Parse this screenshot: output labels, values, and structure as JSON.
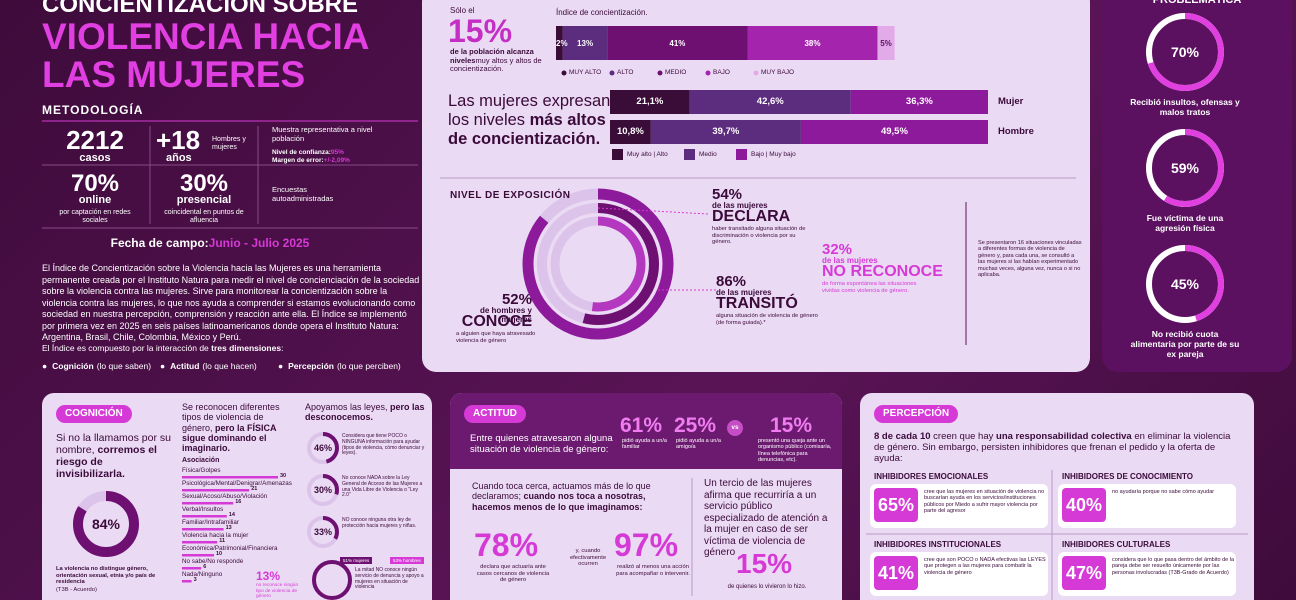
{
  "header": {
    "title_top": "CONCIENTIZACIÓN SOBRE",
    "title": "VIOLENCIA HACIA LAS MUJERES"
  },
  "methodology": {
    "heading": "METODOLOGÍA",
    "cases": {
      "value": "2212",
      "label": "casos"
    },
    "age": {
      "value": "+18",
      "label": "años",
      "note": "Hombres y mujeres"
    },
    "sample": "Muestra representativa a nivel población",
    "confidence_label": "Nivel de confianza:",
    "confidence": "95%",
    "margin_label": "Margen de error:",
    "margin": "+/-2,09%",
    "online": {
      "value": "70%",
      "label": "online",
      "note": "por captación en redes sociales"
    },
    "presencial": {
      "value": "30%",
      "label": "presencial",
      "note": "coincidental en puntos de afluencia"
    },
    "surveys": "Encuestas autoadministradas",
    "field_label": "Fecha de campo:",
    "field": "Junio - Julio 2025"
  },
  "intro": {
    "paragraph": "El Índice de Concientización sobre la Violencia hacia las Mujeres es una herramienta permanente creada por el Instituto Natura para medir el nivel de concienciación de la sociedad sobre la violencia contra las mujeres. Sirve para monitorear la concientización sobre la violencia contra las mujeres, lo que nos ayuda a comprender si estamos evolucionando como sociedad en nuestra percepción, comprensión y reacción ante ella. El Índice se implementó por primera vez en 2025 en seis países latinoamericanos donde opera el Instituto Natura: Argentina, Brasil, Chile, Colombia, México y Perú.",
    "dimensions_prefix": "El Índice es compuesto por la interacción de ",
    "dimensions_bold": "tres dimensiones",
    "dimensions_suffix": ":",
    "dims": [
      {
        "name": "Cognición",
        "note": "(lo que saben)"
      },
      {
        "name": "Actitud",
        "note": "(lo que hacen)"
      },
      {
        "name": "Percepción",
        "note": "(lo que perciben)"
      }
    ]
  },
  "index": {
    "lead": "Sólo el",
    "big": "15%",
    "text_bold": "de la población alcanza niveles",
    "text": "muy altos y altos de concientización.",
    "title": "Índice de concientización.",
    "segments": [
      {
        "name": "MUY ALTO",
        "value": 2,
        "label": "2%",
        "color": "#3a0c38"
      },
      {
        "name": "ALTO",
        "value": 13,
        "label": "13%",
        "color": "#5c2c7e"
      },
      {
        "name": "MEDIO",
        "value": 41,
        "label": "41%",
        "color": "#6e0f72"
      },
      {
        "name": "BAJO",
        "value": 38,
        "label": "38%",
        "color": "#a424ae"
      },
      {
        "name": "MUY BAJO",
        "value": 5,
        "label": "5%",
        "color": "#e3aaea"
      }
    ]
  },
  "gender": {
    "headline": "Las mujeres expresan los niveles ",
    "headline_bold": "más altos de concientización.",
    "rows": [
      {
        "name": "Mujer",
        "segments": [
          {
            "value": 21.1,
            "label": "21,1%"
          },
          {
            "value": 42.6,
            "label": "42,6%"
          },
          {
            "value": 36.3,
            "label": "36,3%"
          }
        ]
      },
      {
        "name": "Hombre",
        "segments": [
          {
            "value": 10.8,
            "label": "10,8%"
          },
          {
            "value": 39.7,
            "label": "39,7%"
          },
          {
            "value": 49.5,
            "label": "49,5%"
          }
        ]
      }
    ],
    "legend": [
      {
        "name": "Muy alto | Alto",
        "color": "#3a0c38"
      },
      {
        "name": "Medio",
        "color": "#5c2c7e"
      },
      {
        "name": "Bajo | Muy bajo",
        "color": "#8c1a9a"
      }
    ]
  },
  "exposure": {
    "title": "NIVEL DE EXPOSICIÓN",
    "stats": [
      {
        "value": 54,
        "label": "54%",
        "sub": "de las mujeres",
        "verb": "DECLARA",
        "note": "haber transitado alguna situación de discriminación o violencia por su género.",
        "color": "#6e0f72"
      },
      {
        "value": 32,
        "label": "32%",
        "sub": "de las mujeres",
        "verb": "NO RECONOCE",
        "note": "de forma espontánea las situaciones vividas como violencia de género.",
        "color": "#d63ad6"
      },
      {
        "value": 86,
        "label": "86%",
        "sub": "de las mujeres",
        "verb": "TRANSITÓ",
        "note": "alguna situación de violencia de género (de forma guiada).*",
        "color": "#8c1a9a"
      },
      {
        "value": 52,
        "label": "52%",
        "sub": "de hombres y mujeres",
        "verb": "CONOCE",
        "note": "a alguien que haya atravesado violencia de género",
        "color": "#b437c0"
      }
    ],
    "footnote": "Se presentaron 16 situaciones vinculadas a diferentes formas de violencia de género y, para cada una, se consultó a las mujeres si las habían experimentado muchas veces, alguna vez, nunca o si no aplicaba."
  },
  "problematic": {
    "title": "PROBLEMÁTICA",
    "items": [
      {
        "value": 70,
        "label": "70%",
        "text": "Recibió insultos, ofensas y malos tratos"
      },
      {
        "value": 59,
        "label": "59%",
        "text": "Fue víctima de una agresión física"
      },
      {
        "value": 45,
        "label": "45%",
        "text": "No recibió cuota alimentaria por parte de su ex pareja"
      }
    ]
  },
  "cognition": {
    "tag": "COGNICIÓN",
    "intro": "Si no la llamamos por su nombre, ",
    "intro_bold": "corremos el riesgo de invisibilizarla.",
    "ring": {
      "value": 84,
      "label": "84%"
    },
    "ring_note": "La violencia no distingue género, orientación sexual, etnia y/o país de residencia",
    "source": "(T3B - Acuerdo)",
    "types_head": "Se reconocen diferentes tipos de violencia de género, ",
    "types_head_bold": "pero la FÍSICA sigue dominando el imaginario.",
    "types_title": "Asociación",
    "types": [
      {
        "name": "Física/Golpes",
        "value": 30
      },
      {
        "name": "Psicológica/Mental/Denigrar/Amenazas",
        "value": 21
      },
      {
        "name": "Sexual/Acoso/Abuso/Violación",
        "value": 16
      },
      {
        "name": "Verbal/Insultos",
        "value": 14
      },
      {
        "name": "Familiar/Intrafamiliar",
        "value": 13
      },
      {
        "name": "Violencia hacia la mujer",
        "value": 11
      },
      {
        "name": "Económica/Patrimonial/Financiera",
        "value": 10
      },
      {
        "name": "No sabe/No responde",
        "value": 6
      },
      {
        "name": "Nada/Ninguno",
        "value": 3
      }
    ],
    "callout": {
      "label": "13%",
      "text": "no reconoce ningún tipo de violencia de género"
    },
    "laws_head": "Apoyamos las leyes, ",
    "laws_head_bold": "pero las desconocemos.",
    "laws": [
      {
        "value": 46,
        "label": "46%",
        "text": "Considera que tiene POCO o NINGUNA información para ayudar (tipos de violencia, cómo denunciar y leyes)."
      },
      {
        "value": 30,
        "label": "30%",
        "text": "No conoce NADA sobre la Ley General de Acceso de las Mujeres a una Vida Libre de Violencia o “Ley 2.0”"
      },
      {
        "value": 33,
        "label": "33%",
        "text": "NO conoce ninguna otra ley de protección hacia mujeres y niñas."
      }
    ],
    "laws_bottom": {
      "tag1": "51% mujeres",
      "tag2": "53% hombres",
      "text": "La mitad NO conoce ningún servicio de denuncia y apoyo a mujeres en situación de violencia"
    }
  },
  "attitude": {
    "tag": "ACTITUD",
    "intro": "Entre quienes atravesaron alguna situación de violencia de género:",
    "stats": [
      {
        "label": "61%",
        "text": "pidió ayuda a un/a familiar"
      },
      {
        "label": "25%",
        "text": "pidió ayuda a un/a amigo/a"
      }
    ],
    "vs": "vs",
    "stat3": {
      "label": "15%",
      "text": "presentó una queja ante un organismo público (comisaría, línea telefónica para denuncias, etc)."
    },
    "close_head": "Cuando toca cerca, actuamos más de lo que declaramos; ",
    "close_bold": "cuando nos toca a nosotras, hacemos menos de lo que imaginamos:",
    "close_stats": [
      {
        "label": "78%",
        "text": "declara que actuaría ante casos cercanos de violencia de género"
      },
      {
        "label": "97%",
        "text": "realizó al menos una acción para acompañar o intervenir."
      }
    ],
    "close_mid": "y, cuando efectivamente ocurren",
    "third_text": "Un tercio de las mujeres afirma que recurriría a un servicio público especializado de atención a la mujer en caso de ser víctima de violencia de género",
    "third_label": "15%",
    "third_note": "de quienes lo vivieron lo hizo."
  },
  "perception": {
    "tag": "PERCEPCIÓN",
    "intro_bold1": "8 de cada 10",
    "intro1": " creen que hay ",
    "intro_bold2": "una responsabilidad colectiva",
    "intro2": " en eliminar la violencia de género. Sin embargo, persisten inhibidores que frenan el pedido y la oferta de ayuda:",
    "inhibitors": [
      {
        "title": "INHIBIDORES EMOCIONALES",
        "label": "65%",
        "text": "cree que las mujeres en situación de violencia no buscarían ayuda en los servicios/instituciones públicos por Miedo a sufrir mayor violencia por parte del agresor"
      },
      {
        "title": "INHIBIDORES DE CONOCIMIENTO",
        "label": "40%",
        "text": "no ayudaría porque no sabe cómo ayudar"
      },
      {
        "title": "INHIBIDORES INSTITUCIONALES",
        "label": "41%",
        "text": "cree que son POCO o NADA efectivas las LEYES que protegen a las mujeres para combatir la violencia de género"
      },
      {
        "title": "INHIBIDORES CULTURALES",
        "label": "47%",
        "text": "considera que lo que pasa dentro del ámbito de la pareja debe ser resuelto únicamente por las personas involucradas (T3B-Grado de Acuerdo)"
      }
    ]
  }
}
